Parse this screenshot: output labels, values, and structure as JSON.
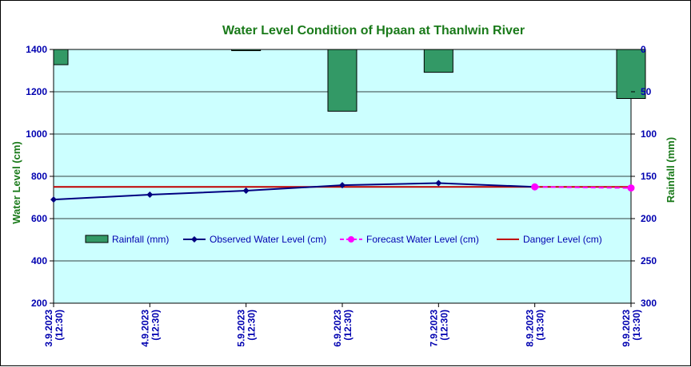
{
  "chart_data": {
    "type": "bar",
    "title": "Water Level Condition of Hpaan at Thanlwin River",
    "ylabel": "Water Level (cm)",
    "y2label": "Rainfall (mm)",
    "ylim": [
      200,
      1400
    ],
    "y2lim": [
      0,
      300
    ],
    "y2_inverted": true,
    "yticks": [
      "200",
      "400",
      "600",
      "800",
      "1000",
      "1200",
      "1400"
    ],
    "y2ticks": [
      "0",
      "50",
      "100",
      "150",
      "200",
      "250",
      "300"
    ],
    "x_labels": [
      [
        "3.9.2023",
        "(12:30)"
      ],
      [
        "4.9.2023",
        "(12:30)"
      ],
      [
        "5.9.2023",
        "(12:30)"
      ],
      [
        "6.9.2023",
        "(12:30)"
      ],
      [
        "7.9.2023",
        "(12:30)"
      ],
      [
        "8.9.2023",
        "(13:30)"
      ],
      [
        "9.9.2023",
        "(13:30)"
      ]
    ],
    "legend_placement": "middle-center",
    "grid": true,
    "series": [
      {
        "name": "Rainfall (mm)",
        "kind": "bar",
        "axis": "right",
        "color": "#339966",
        "values": [
          18,
          null,
          1,
          73,
          27,
          null,
          58
        ]
      },
      {
        "name": "Observed Water Level (cm)",
        "kind": "line",
        "axis": "left",
        "color": "#000080",
        "values": [
          690,
          713,
          732,
          758,
          768,
          750,
          null
        ]
      },
      {
        "name": "Forecast Water Level (cm)",
        "kind": "line-dashed",
        "axis": "left",
        "color": "#ff00ff",
        "values": [
          null,
          null,
          null,
          null,
          null,
          750,
          745
        ]
      },
      {
        "name": "Danger Level (cm)",
        "kind": "hline",
        "axis": "left",
        "color": "#c00000",
        "value": 750
      }
    ],
    "plot_bg": "#ccffff"
  }
}
